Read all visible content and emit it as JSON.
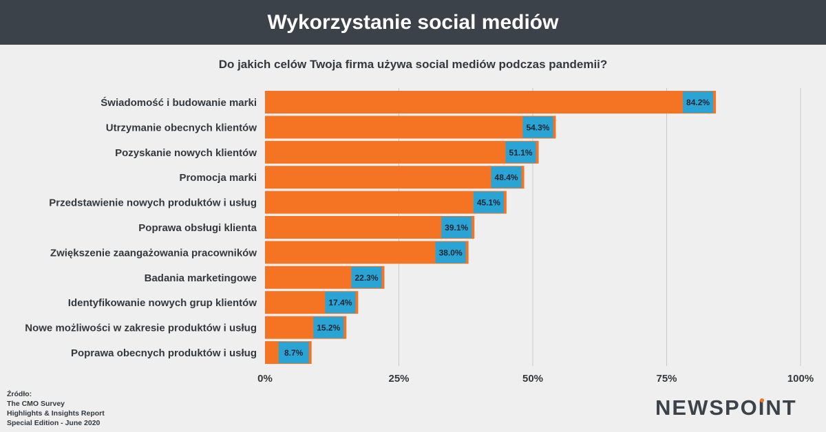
{
  "header": {
    "title": "Wykorzystanie social mediów"
  },
  "source": {
    "lines": [
      "Źródło:",
      "The CMO Survey",
      "Highlights & Insights Report",
      "Special Edition - June 2020"
    ]
  },
  "logo": {
    "text_before": "NEWSPO",
    "text_i": "I",
    "text_after": "NT",
    "accent_color": "#f47424"
  },
  "chart_data": {
    "type": "bar",
    "orientation": "horizontal",
    "title": "Do jakich celów Twoja firma używa social mediów podczas pandemii?",
    "categories": [
      "Świadomość i budowanie marki",
      "Utrzymanie obecnych klientów",
      "Pozyskanie nowych klientów",
      "Promocja marki",
      "Przedstawienie nowych produktów i usług",
      "Poprawa obsługi klienta",
      "Zwiększenie zaangażowania pracowników",
      "Badania marketingowe",
      "Identyfikowanie nowych grup klientów",
      "Nowe możliwości w zakresie produktów i usług",
      "Poprawa obecnych produktów i usług"
    ],
    "values": [
      84.2,
      54.3,
      51.1,
      48.4,
      45.1,
      39.1,
      38.0,
      22.3,
      17.4,
      15.2,
      8.7
    ],
    "value_labels": [
      "84.2%",
      "54.3%",
      "51.1%",
      "48.4%",
      "45.1%",
      "39.1%",
      "38.0%",
      "22.3%",
      "17.4%",
      "15.2%",
      "8.7%"
    ],
    "xlim": [
      0,
      100
    ],
    "xticks": [
      0,
      25,
      50,
      75,
      100
    ],
    "xtick_labels": [
      "0%",
      "25%",
      "50%",
      "75%",
      "100%"
    ],
    "grid": true,
    "colors": {
      "bar": "#f47424",
      "label_bg": "#2aa3d5",
      "grid": "#c8c8c8",
      "text": "#33383d"
    }
  }
}
